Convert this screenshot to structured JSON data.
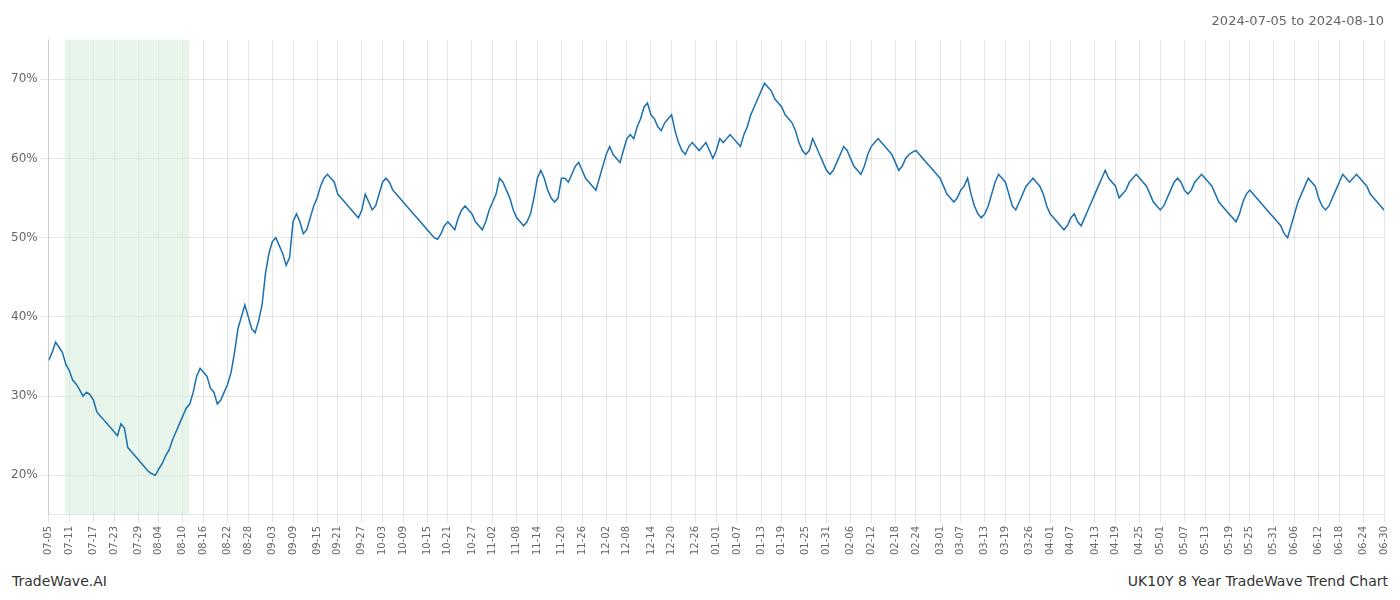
{
  "chart_data": {
    "type": "line",
    "title": "2024-07-05 to 2024-08-10",
    "annotations": [
      "TradeWave.AI",
      "UK10Y 8 Year TradeWave Trend Chart"
    ],
    "color": "#1a6faf",
    "grid": true,
    "ylim": [
      15,
      75
    ],
    "yticks": [
      {
        "value": 20,
        "label": "20%"
      },
      {
        "value": 30,
        "label": "30%"
      },
      {
        "value": 40,
        "label": "40%"
      },
      {
        "value": 50,
        "label": "50%"
      },
      {
        "value": 60,
        "label": "60%"
      },
      {
        "value": 70,
        "label": "70%"
      }
    ],
    "shade": {
      "from": 4.668,
      "to": 40.845,
      "color": "#d4edda"
    },
    "categories": [
      "07-05",
      null,
      null,
      null,
      null,
      null,
      "07-11",
      null,
      null,
      null,
      null,
      null,
      null,
      "07-17",
      null,
      null,
      null,
      null,
      null,
      "07-23",
      null,
      null,
      null,
      null,
      null,
      null,
      "07-29",
      null,
      null,
      null,
      null,
      null,
      "08-04",
      null,
      null,
      null,
      null,
      null,
      null,
      "08-10",
      null,
      null,
      null,
      null,
      null,
      "08-16",
      null,
      null,
      null,
      null,
      null,
      null,
      "08-22",
      null,
      null,
      null,
      null,
      null,
      "08-28",
      null,
      null,
      null,
      null,
      null,
      null,
      "09-03",
      null,
      null,
      null,
      null,
      null,
      "09-09",
      null,
      null,
      null,
      null,
      null,
      null,
      "09-15",
      null,
      null,
      null,
      null,
      null,
      "09-21",
      null,
      null,
      null,
      null,
      null,
      null,
      "09-27",
      null,
      null,
      null,
      null,
      null,
      "10-03",
      null,
      null,
      null,
      null,
      null,
      "10-09",
      null,
      null,
      null,
      null,
      null,
      null,
      "10-15",
      null,
      null,
      null,
      null,
      null,
      "10-21",
      null,
      null,
      null,
      null,
      null,
      null,
      "10-27",
      null,
      null,
      null,
      null,
      null,
      "11-02",
      null,
      null,
      null,
      null,
      null,
      null,
      "11-08",
      null,
      null,
      null,
      null,
      null,
      "11-14",
      null,
      null,
      null,
      null,
      null,
      null,
      "11-20",
      null,
      null,
      null,
      null,
      null,
      "11-26",
      null,
      null,
      null,
      null,
      null,
      null,
      "12-02",
      null,
      null,
      null,
      null,
      null,
      "12-08",
      null,
      null,
      null,
      null,
      null,
      null,
      "12-14",
      null,
      null,
      null,
      null,
      null,
      "12-20",
      null,
      null,
      null,
      null,
      null,
      null,
      "12-26",
      null,
      null,
      null,
      null,
      null,
      "01-01",
      null,
      null,
      null,
      null,
      null,
      "01-07",
      null,
      null,
      null,
      null,
      null,
      null,
      "01-13",
      null,
      null,
      null,
      null,
      null,
      "01-19",
      null,
      null,
      null,
      null,
      null,
      null,
      "01-25",
      null,
      null,
      null,
      null,
      null,
      "01-31",
      null,
      null,
      null,
      null,
      null,
      null,
      "02-06",
      null,
      null,
      null,
      null,
      null,
      "02-12",
      null,
      null,
      null,
      null,
      null,
      null,
      "02-18",
      null,
      null,
      null,
      null,
      null,
      "02-24",
      null,
      null,
      null,
      null,
      null,
      null,
      "03-01",
      null,
      null,
      null,
      null,
      null,
      "03-07",
      null,
      null,
      null,
      null,
      null,
      null,
      "03-13",
      null,
      null,
      null,
      null,
      null,
      "03-19",
      null,
      null,
      null,
      null,
      null,
      null,
      "03-26",
      null,
      null,
      null,
      null,
      null,
      "04-01",
      null,
      null,
      null,
      null,
      null,
      "04-07",
      null,
      null,
      null,
      null,
      null,
      null,
      "04-13",
      null,
      null,
      null,
      null,
      null,
      "04-19",
      null,
      null,
      null,
      null,
      null,
      null,
      "04-25",
      null,
      null,
      null,
      null,
      null,
      "05-01",
      null,
      null,
      null,
      null,
      null,
      null,
      "05-07",
      null,
      null,
      null,
      null,
      null,
      "05-13",
      null,
      null,
      null,
      null,
      null,
      null,
      "05-19",
      null,
      null,
      null,
      null,
      null,
      "05-25",
      null,
      null,
      null,
      null,
      null,
      null,
      "05-31",
      null,
      null,
      null,
      null,
      null,
      "06-06",
      null,
      null,
      null,
      null,
      null,
      null,
      "06-12",
      null,
      null,
      null,
      null,
      null,
      "06-18",
      null,
      null,
      null,
      null,
      null,
      null,
      "06-24",
      null,
      null,
      null,
      null,
      null,
      "06-30"
    ],
    "values": [
      34.5,
      35.5,
      36.8,
      36.2,
      35.5,
      34.0,
      33.2,
      32.0,
      31.5,
      30.8,
      30.0,
      30.5,
      30.2,
      29.5,
      28.0,
      27.5,
      27.0,
      26.5,
      26.0,
      25.5,
      25.0,
      26.5,
      26.0,
      23.5,
      23.0,
      22.5,
      22.0,
      21.5,
      21.0,
      20.5,
      20.2,
      20.0,
      20.8,
      21.5,
      22.5,
      23.2,
      24.5,
      25.5,
      26.5,
      27.5,
      28.5,
      29.0,
      30.5,
      32.5,
      33.5,
      33.0,
      32.5,
      31.0,
      30.5,
      29.0,
      29.5,
      30.5,
      31.5,
      33.0,
      35.5,
      38.5,
      40.0,
      41.5,
      40.0,
      38.5,
      38.0,
      39.5,
      41.5,
      45.5,
      48.0,
      49.5,
      50.0,
      49.0,
      48.0,
      46.5,
      47.5,
      52.0,
      53.0,
      52.0,
      50.5,
      51.0,
      52.5,
      54.0,
      55.0,
      56.5,
      57.5,
      58.0,
      57.5,
      57.0,
      55.5,
      55.0,
      54.5,
      54.0,
      53.5,
      53.0,
      52.5,
      53.5,
      55.5,
      54.5,
      53.5,
      54.0,
      55.5,
      57.0,
      57.5,
      57.0,
      56.0,
      55.5,
      55.0,
      54.5,
      54.0,
      53.5,
      53.0,
      52.5,
      52.0,
      51.5,
      51.0,
      50.5,
      50.0,
      49.8,
      50.5,
      51.5,
      52.0,
      51.5,
      51.0,
      52.5,
      53.5,
      54.0,
      53.5,
      53.0,
      52.0,
      51.5,
      51.0,
      52.0,
      53.5,
      54.5,
      55.5,
      57.5,
      57.0,
      56.0,
      55.0,
      53.5,
      52.5,
      52.0,
      51.5,
      52.0,
      53.0,
      55.0,
      57.5,
      58.5,
      57.5,
      56.0,
      55.0,
      54.5,
      55.0,
      57.5,
      57.5,
      57.0,
      58.0,
      59.0,
      59.5,
      58.5,
      57.5,
      57.0,
      56.5,
      56.0,
      57.5,
      59.0,
      60.5,
      61.5,
      60.5,
      60.0,
      59.5,
      61.0,
      62.5,
      63.0,
      62.5,
      64.0,
      65.0,
      66.5,
      67.0,
      65.5,
      65.0,
      64.0,
      63.5,
      64.5,
      65.0,
      65.5,
      63.5,
      62.0,
      61.0,
      60.5,
      61.5,
      62.0,
      61.5,
      61.0,
      61.5,
      62.0,
      61.0,
      60.0,
      61.0,
      62.5,
      62.0,
      62.5,
      63.0,
      62.5,
      62.0,
      61.5,
      63.0,
      64.0,
      65.5,
      66.5,
      67.5,
      68.5,
      69.5,
      69.0,
      68.5,
      67.5,
      67.0,
      66.5,
      65.5,
      65.0,
      64.5,
      63.5,
      62.0,
      61.0,
      60.5,
      61.0,
      62.5,
      61.5,
      60.5,
      59.5,
      58.5,
      58.0,
      58.5,
      59.5,
      60.5,
      61.5,
      61.0,
      60.0,
      59.0,
      58.5,
      58.0,
      59.0,
      60.5,
      61.5,
      62.0,
      62.5,
      62.0,
      61.5,
      61.0,
      60.5,
      59.5,
      58.5,
      59.0,
      60.0,
      60.5,
      60.8,
      61.0,
      60.5,
      60.0,
      59.5,
      59.0,
      58.5,
      58.0,
      57.5,
      56.5,
      55.5,
      55.0,
      54.5,
      55.0,
      56.0,
      56.5,
      57.5,
      55.5,
      54.0,
      53.0,
      52.5,
      53.0,
      54.0,
      55.5,
      57.0,
      58.0,
      57.5,
      57.0,
      55.5,
      54.0,
      53.5,
      54.5,
      55.5,
      56.5,
      57.0,
      57.5,
      57.0,
      56.5,
      55.5,
      54.0,
      53.0,
      52.5,
      52.0,
      51.5,
      51.0,
      51.5,
      52.5,
      53.0,
      52.0,
      51.5,
      52.5,
      53.5,
      54.5,
      55.5,
      56.5,
      57.5,
      58.5,
      57.5,
      57.0,
      56.5,
      55.0,
      55.5,
      56.0,
      57.0,
      57.5,
      58.0,
      57.5,
      57.0,
      56.5,
      55.5,
      54.5,
      54.0,
      53.5,
      54.0,
      55.0,
      56.0,
      57.0,
      57.5,
      57.0,
      56.0,
      55.5,
      56.0,
      57.0,
      57.5,
      58.0,
      57.5,
      57.0,
      56.5,
      55.5,
      54.5,
      54.0,
      53.5,
      53.0,
      52.5,
      52.0,
      53.0,
      54.5,
      55.5,
      56.0,
      55.5,
      55.0,
      54.5,
      54.0,
      53.5,
      53.0,
      52.5,
      52.0,
      51.5,
      50.5,
      50.0,
      51.5,
      53.0,
      54.5,
      55.5,
      56.5,
      57.5,
      57.0,
      56.5,
      55.0,
      54.0,
      53.5,
      54.0,
      55.0,
      56.0,
      57.0,
      58.0,
      57.5,
      57.0,
      57.5,
      58.0,
      57.5,
      57.0,
      56.5,
      55.5,
      55.0,
      54.5,
      54.0,
      53.5
    ]
  }
}
